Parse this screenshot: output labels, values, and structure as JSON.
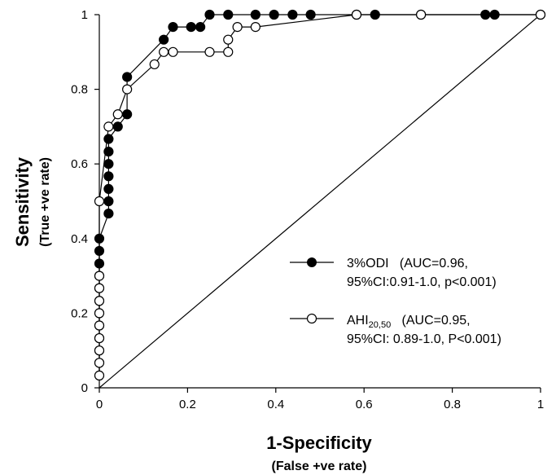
{
  "chart_data": {
    "type": "line",
    "xlabel": "1-Specificity",
    "xlabel_sub": "(False +ve rate)",
    "ylabel": "Sensitivity",
    "ylabel_sub": "(True +ve rate)",
    "xlim": [
      0,
      1
    ],
    "ylim": [
      0,
      1
    ],
    "x_ticks": [
      "0",
      "0.2",
      "0.4",
      "0.6",
      "0.8",
      "1"
    ],
    "y_ticks": [
      "0",
      "0.2",
      "0.4",
      "0.6",
      "0.8",
      "1"
    ],
    "grid": false,
    "legend_position": "right-middle",
    "reference_line": {
      "x": [
        0,
        1
      ],
      "y": [
        0,
        1
      ]
    },
    "series": [
      {
        "name": "3%ODI",
        "legend_line1": "3%ODI   (AUC=0.96,",
        "legend_line2": "95%CI:0.91-1.0, p<0.001)",
        "marker": "filled-circle",
        "color": "#000000",
        "points": [
          [
            0,
            0.033
          ],
          [
            0,
            0.067
          ],
          [
            0,
            0.1
          ],
          [
            0,
            0.133
          ],
          [
            0,
            0.167
          ],
          [
            0,
            0.2
          ],
          [
            0,
            0.233
          ],
          [
            0,
            0.267
          ],
          [
            0,
            0.3
          ],
          [
            0,
            0.333
          ],
          [
            0,
            0.367
          ],
          [
            0,
            0.4
          ],
          [
            0.021,
            0.467
          ],
          [
            0.021,
            0.5
          ],
          [
            0.021,
            0.533
          ],
          [
            0.021,
            0.567
          ],
          [
            0.021,
            0.6
          ],
          [
            0.021,
            0.633
          ],
          [
            0.021,
            0.667
          ],
          [
            0.042,
            0.7
          ],
          [
            0.063,
            0.733
          ],
          [
            0.063,
            0.833
          ],
          [
            0.146,
            0.933
          ],
          [
            0.167,
            0.967
          ],
          [
            0.208,
            0.967
          ],
          [
            0.229,
            0.967
          ],
          [
            0.25,
            1.0
          ],
          [
            0.292,
            1.0
          ],
          [
            0.354,
            1.0
          ],
          [
            0.396,
            1.0
          ],
          [
            0.438,
            1.0
          ],
          [
            0.479,
            1.0
          ],
          [
            0.583,
            1.0
          ],
          [
            0.625,
            1.0
          ],
          [
            0.729,
            1.0
          ],
          [
            0.875,
            1.0
          ],
          [
            0.896,
            1.0
          ],
          [
            1.0,
            1.0
          ]
        ]
      },
      {
        "name": "AHI20,50",
        "legend_base": "AHI",
        "legend_sub": "20,50",
        "legend_line1_rest": "   (AUC=0.95,",
        "legend_line2": "95%CI: 0.89-1.0, P<0.001)",
        "marker": "open-circle",
        "color": "#000000",
        "points": [
          [
            0,
            0.033
          ],
          [
            0,
            0.067
          ],
          [
            0,
            0.1
          ],
          [
            0,
            0.133
          ],
          [
            0,
            0.167
          ],
          [
            0,
            0.2
          ],
          [
            0,
            0.233
          ],
          [
            0,
            0.267
          ],
          [
            0,
            0.3
          ],
          [
            0,
            0.5
          ],
          [
            0.021,
            0.7
          ],
          [
            0.042,
            0.733
          ],
          [
            0.063,
            0.8
          ],
          [
            0.125,
            0.867
          ],
          [
            0.146,
            0.9
          ],
          [
            0.167,
            0.9
          ],
          [
            0.25,
            0.9
          ],
          [
            0.292,
            0.9
          ],
          [
            0.292,
            0.933
          ],
          [
            0.313,
            0.967
          ],
          [
            0.354,
            0.967
          ],
          [
            0.583,
            1.0
          ],
          [
            0.729,
            1.0
          ],
          [
            1.0,
            1.0
          ]
        ]
      }
    ]
  }
}
